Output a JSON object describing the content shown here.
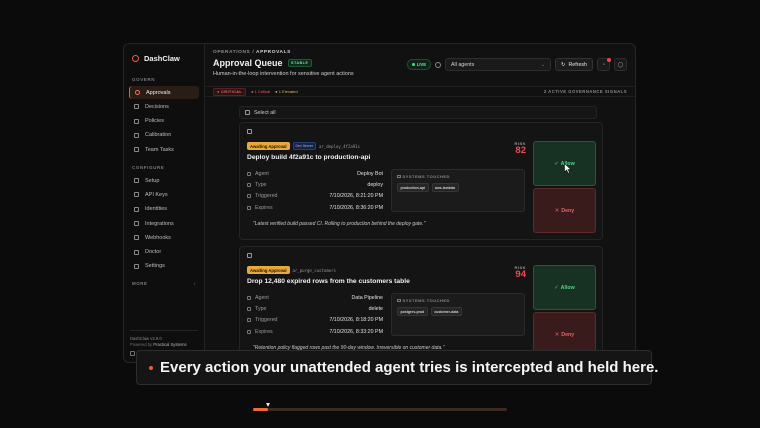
{
  "brand": {
    "name": "DashClaw"
  },
  "sidebar": {
    "govern_label": "GOVERN",
    "govern_items": [
      {
        "label": "Approvals",
        "icon": "approvals-icon",
        "active": true
      },
      {
        "label": "Decisions",
        "icon": "decisions-icon"
      },
      {
        "label": "Policies",
        "icon": "policies-icon"
      },
      {
        "label": "Calibration",
        "icon": "calibration-icon"
      },
      {
        "label": "Team Tasks",
        "icon": "team-tasks-icon"
      }
    ],
    "configure_label": "CONFIGURE",
    "configure_items": [
      {
        "label": "Setup",
        "icon": "setup-icon"
      },
      {
        "label": "API Keys",
        "icon": "key-icon"
      },
      {
        "label": "Identities",
        "icon": "identities-icon"
      },
      {
        "label": "Integrations",
        "icon": "integrations-icon"
      },
      {
        "label": "Webhooks",
        "icon": "webhooks-icon"
      },
      {
        "label": "Doctor",
        "icon": "doctor-icon"
      },
      {
        "label": "Settings",
        "icon": "settings-icon"
      }
    ],
    "more_label": "MORE",
    "version": "DashClaw v2.9.0",
    "powered_prefix": "Powered by",
    "powered_by": "Practical Systems"
  },
  "header": {
    "breadcrumb_root": "OPERATIONS",
    "breadcrumb_sep": "/",
    "breadcrumb_current": "APPROVALS",
    "title": "Approval Queue",
    "stable_badge": "STABLE",
    "subtitle": "Human-in-the-loop intervention for sensitive agent actions",
    "live_label": "LIVE",
    "agent_select_value": "All agents",
    "refresh_label": "Refresh"
  },
  "status_bar": {
    "critical_badge": "CRITICAL",
    "critical_count": "1 Critical",
    "elevated_count": "1 Elevated",
    "signals": "2 ACTIVE GOVERNANCE SIGNALS"
  },
  "select_all_label": "Select all",
  "approvals": [
    {
      "status": "Awaiting Approval",
      "role_badge": "Dev Server",
      "id": "ar_deploy_4f2a91c",
      "title": "Deploy build 4f2a91c to production-api",
      "risk_label": "RISK",
      "risk": "82",
      "fields": [
        {
          "key": "Agent",
          "value": "Deploy Bot"
        },
        {
          "key": "Type",
          "value": "deploy"
        },
        {
          "key": "Triggered",
          "value": "7/10/2026, 8:21:20 PM"
        },
        {
          "key": "Expires",
          "value": "7/10/2026, 8:36:20 PM"
        }
      ],
      "systems_label": "SYSTEMS TOUCHED",
      "systems": [
        "production-api",
        "aws-lambda"
      ],
      "note": "\"Latest verified build passed CI. Rolling to production behind the deploy gate.\"",
      "allow_label": "Allow",
      "deny_label": "Deny"
    },
    {
      "status": "Awaiting Approval",
      "role_badge": "",
      "id": "ar_purge_customers",
      "title": "Drop 12,480 expired rows from the customers table",
      "risk_label": "RISK",
      "risk": "94",
      "fields": [
        {
          "key": "Agent",
          "value": "Data Pipeline"
        },
        {
          "key": "Type",
          "value": "delete"
        },
        {
          "key": "Triggered",
          "value": "7/10/2026, 8:18:20 PM"
        },
        {
          "key": "Expires",
          "value": "7/10/2026, 8:33:20 PM"
        }
      ],
      "systems_label": "SYSTEMS TOUCHED",
      "systems": [
        "postgres-prod",
        "customer-data"
      ],
      "note": "\"Retention policy flagged rows past the 90-day window. Irreversible on customer data.\"",
      "allow_label": "Allow",
      "deny_label": "Deny"
    }
  ],
  "caption": {
    "text": "Every action your unattended agent tries is intercepted and held here."
  },
  "progress": {
    "fraction": 0.06
  },
  "colors": {
    "accent": "#ef5b3a",
    "allow": "#51d283",
    "deny": "#e46464",
    "risk": "#ef4a4a",
    "awaiting": "#e8a83b"
  }
}
